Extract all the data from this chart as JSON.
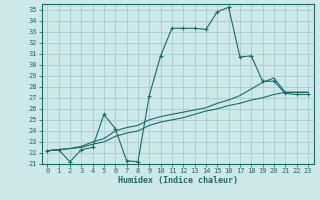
{
  "xlabel": "Humidex (Indice chaleur)",
  "bg_color": "#cce8e8",
  "grid_color": "#aacccc",
  "line_color": "#1a6b6b",
  "xlim": [
    -0.5,
    23.5
  ],
  "ylim": [
    21,
    35.5
  ],
  "xticks": [
    0,
    1,
    2,
    3,
    4,
    5,
    6,
    7,
    8,
    9,
    10,
    11,
    12,
    13,
    14,
    15,
    16,
    17,
    18,
    19,
    20,
    21,
    22,
    23
  ],
  "yticks": [
    21,
    22,
    23,
    24,
    25,
    26,
    27,
    28,
    29,
    30,
    31,
    32,
    33,
    34,
    35
  ],
  "line1_x": [
    0,
    1,
    2,
    3,
    4,
    5,
    6,
    7,
    8,
    9,
    10,
    11,
    12,
    13,
    14,
    15,
    16,
    17,
    18,
    19,
    20,
    21,
    22,
    23
  ],
  "line1_y": [
    22.2,
    22.3,
    21.2,
    22.3,
    22.5,
    25.5,
    24.2,
    21.3,
    21.2,
    27.2,
    30.8,
    33.3,
    33.3,
    33.3,
    33.2,
    34.8,
    35.2,
    30.7,
    30.8,
    28.5,
    28.5,
    27.4,
    27.3,
    27.3
  ],
  "line2_x": [
    0,
    1,
    2,
    3,
    4,
    5,
    6,
    7,
    8,
    9,
    10,
    11,
    12,
    13,
    14,
    15,
    16,
    17,
    18,
    19,
    20,
    21,
    22,
    23
  ],
  "line2_y": [
    22.2,
    22.3,
    22.4,
    22.5,
    22.8,
    23.0,
    23.5,
    23.8,
    24.0,
    24.5,
    24.8,
    25.0,
    25.2,
    25.5,
    25.8,
    26.0,
    26.3,
    26.5,
    26.8,
    27.0,
    27.3,
    27.5,
    27.5,
    27.5
  ],
  "line3_x": [
    0,
    1,
    2,
    3,
    4,
    5,
    6,
    7,
    8,
    9,
    10,
    11,
    12,
    13,
    14,
    15,
    16,
    17,
    18,
    19,
    20,
    21,
    22,
    23
  ],
  "line3_y": [
    22.2,
    22.3,
    22.4,
    22.6,
    23.0,
    23.3,
    24.0,
    24.3,
    24.5,
    25.0,
    25.3,
    25.5,
    25.7,
    25.9,
    26.1,
    26.5,
    26.8,
    27.2,
    27.8,
    28.4,
    28.8,
    27.5,
    27.5,
    27.5
  ],
  "tick_fontsize": 5.0,
  "xlabel_fontsize": 6.0
}
